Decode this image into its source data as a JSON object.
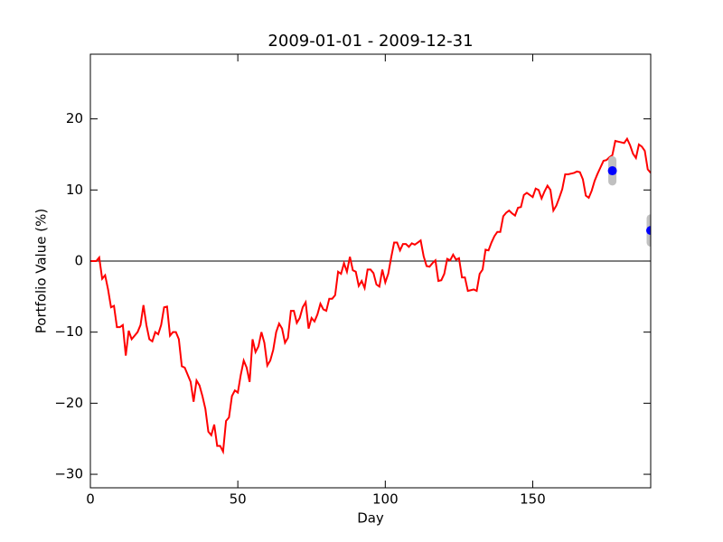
{
  "chart_data": {
    "type": "line",
    "title": "2009-01-01 - 2009-12-31",
    "xlabel": "Day",
    "ylabel": "Portfolio Value (%)",
    "xlim": [
      0,
      190
    ],
    "ylim": [
      -31.9,
      29.1
    ],
    "xticks": [
      0,
      50,
      100,
      150
    ],
    "yticks": [
      {
        "value": -30,
        "label": "−30"
      },
      {
        "value": -20,
        "label": "−20"
      },
      {
        "value": -10,
        "label": "−10"
      },
      0,
      10,
      20
    ],
    "hline": 0,
    "hline_color": "#000000",
    "series": [
      {
        "type": "line",
        "color": "#ff0000",
        "x": [
          0,
          1,
          2,
          3,
          4,
          5,
          6,
          7,
          8,
          9,
          10,
          11,
          12,
          13,
          14,
          15,
          16,
          17,
          18,
          19,
          20,
          21,
          22,
          23,
          24,
          25,
          26,
          27,
          28,
          29,
          30,
          31,
          32,
          33,
          34,
          35,
          36,
          37,
          38,
          39,
          40,
          41,
          42,
          43,
          44,
          45,
          46,
          47,
          48,
          49,
          50,
          51,
          52,
          53,
          54,
          55,
          56,
          57,
          58,
          59,
          60,
          61,
          62,
          63,
          64,
          65,
          66,
          67,
          68,
          69,
          70,
          71,
          72,
          73,
          74,
          75,
          76,
          77,
          78,
          79,
          80,
          81,
          82,
          83,
          84,
          85,
          86,
          87,
          88,
          89,
          90,
          91,
          92,
          93,
          94,
          95,
          96,
          97,
          98,
          99,
          100,
          101,
          102,
          103,
          104,
          105,
          106,
          107,
          108,
          109,
          110,
          111,
          112,
          113,
          114,
          115,
          116,
          117,
          118,
          119,
          120,
          121,
          122,
          123,
          124,
          125,
          126,
          127,
          128,
          129,
          130,
          131,
          132,
          133,
          134,
          135,
          136,
          137,
          138,
          139,
          140,
          141,
          142,
          143,
          144,
          145,
          146,
          147,
          148,
          149,
          150,
          151,
          152,
          153,
          154,
          155,
          156,
          157,
          158,
          159,
          160,
          161,
          162,
          163,
          164,
          165,
          166,
          167,
          168,
          169,
          170,
          171,
          172,
          173,
          174,
          175,
          176,
          177,
          178,
          179,
          180,
          181,
          182,
          183,
          184,
          185,
          186,
          187,
          188,
          189,
          190
        ],
        "values": [
          0,
          0,
          0,
          0.5,
          -2.5,
          -2,
          -4,
          -6.5,
          -6.3,
          -9.3,
          -9.3,
          -9,
          -13.3,
          -9.8,
          -11,
          -10.5,
          -10,
          -9,
          -6.2,
          -9,
          -11,
          -11.3,
          -10,
          -10.3,
          -9,
          -6.5,
          -6.4,
          -10.5,
          -10,
          -10,
          -11,
          -14.8,
          -15,
          -16,
          -17,
          -19.8,
          -16.8,
          -17.5,
          -19,
          -20.8,
          -24,
          -24.5,
          -23,
          -26,
          -26,
          -26.8,
          -22.5,
          -22,
          -19,
          -18.2,
          -18.5,
          -16,
          -14,
          -15,
          -17,
          -11,
          -12.8,
          -12,
          -10,
          -11.5,
          -14.7,
          -14,
          -12.5,
          -10,
          -8.8,
          -9.5,
          -11.5,
          -10.8,
          -7,
          -7,
          -8.7,
          -8,
          -6.5,
          -5.8,
          -9.5,
          -8,
          -8.5,
          -7.5,
          -6,
          -6.8,
          -7,
          -5.3,
          -5.3,
          -4.8,
          -1.5,
          -1.8,
          -0.3,
          -1.5,
          0.6,
          -1.3,
          -1.5,
          -3.5,
          -2.8,
          -3.8,
          -1.2,
          -1.2,
          -1.7,
          -3.3,
          -3.6,
          -1.2,
          -3,
          -1.8,
          0.5,
          2.6,
          2.6,
          1.5,
          2.4,
          2.4,
          2,
          2.5,
          2.3,
          2.6,
          2.9,
          0.7,
          -0.7,
          -0.8,
          -0.3,
          0.1,
          -2.8,
          -2.7,
          -1.8,
          0.3,
          0.1,
          0.9,
          0.2,
          0.4,
          -2.3,
          -2.3,
          -4.2,
          -4.1,
          -4,
          -4.2,
          -1.8,
          -1.2,
          1.6,
          1.5,
          2.6,
          3.5,
          4.1,
          4.1,
          6.3,
          6.8,
          7.1,
          6.7,
          6.4,
          7.5,
          7.6,
          9.3,
          9.6,
          9.3,
          9,
          10.2,
          10,
          8.8,
          9.8,
          10.6,
          10,
          7.1,
          7.8,
          8.9,
          10.1,
          12.2,
          12.2,
          12.3,
          12.4,
          12.6,
          12.5,
          11.5,
          9.2,
          8.9,
          9.9,
          11.3,
          12.3,
          13.2,
          14.1,
          14.2,
          14.6,
          14.9,
          16.9,
          16.8,
          16.7,
          16.6,
          17.2,
          16.3,
          15.1,
          14.5,
          16.4,
          16.1,
          15.5,
          12.9,
          12.4
        ]
      },
      {
        "type": "scatter",
        "color": "#0000ff",
        "error_color": "#c0c0c0",
        "x": [
          177,
          190
        ],
        "values": [
          12.7,
          4.3
        ],
        "errors": [
          1.5,
          1.7
        ]
      }
    ]
  }
}
